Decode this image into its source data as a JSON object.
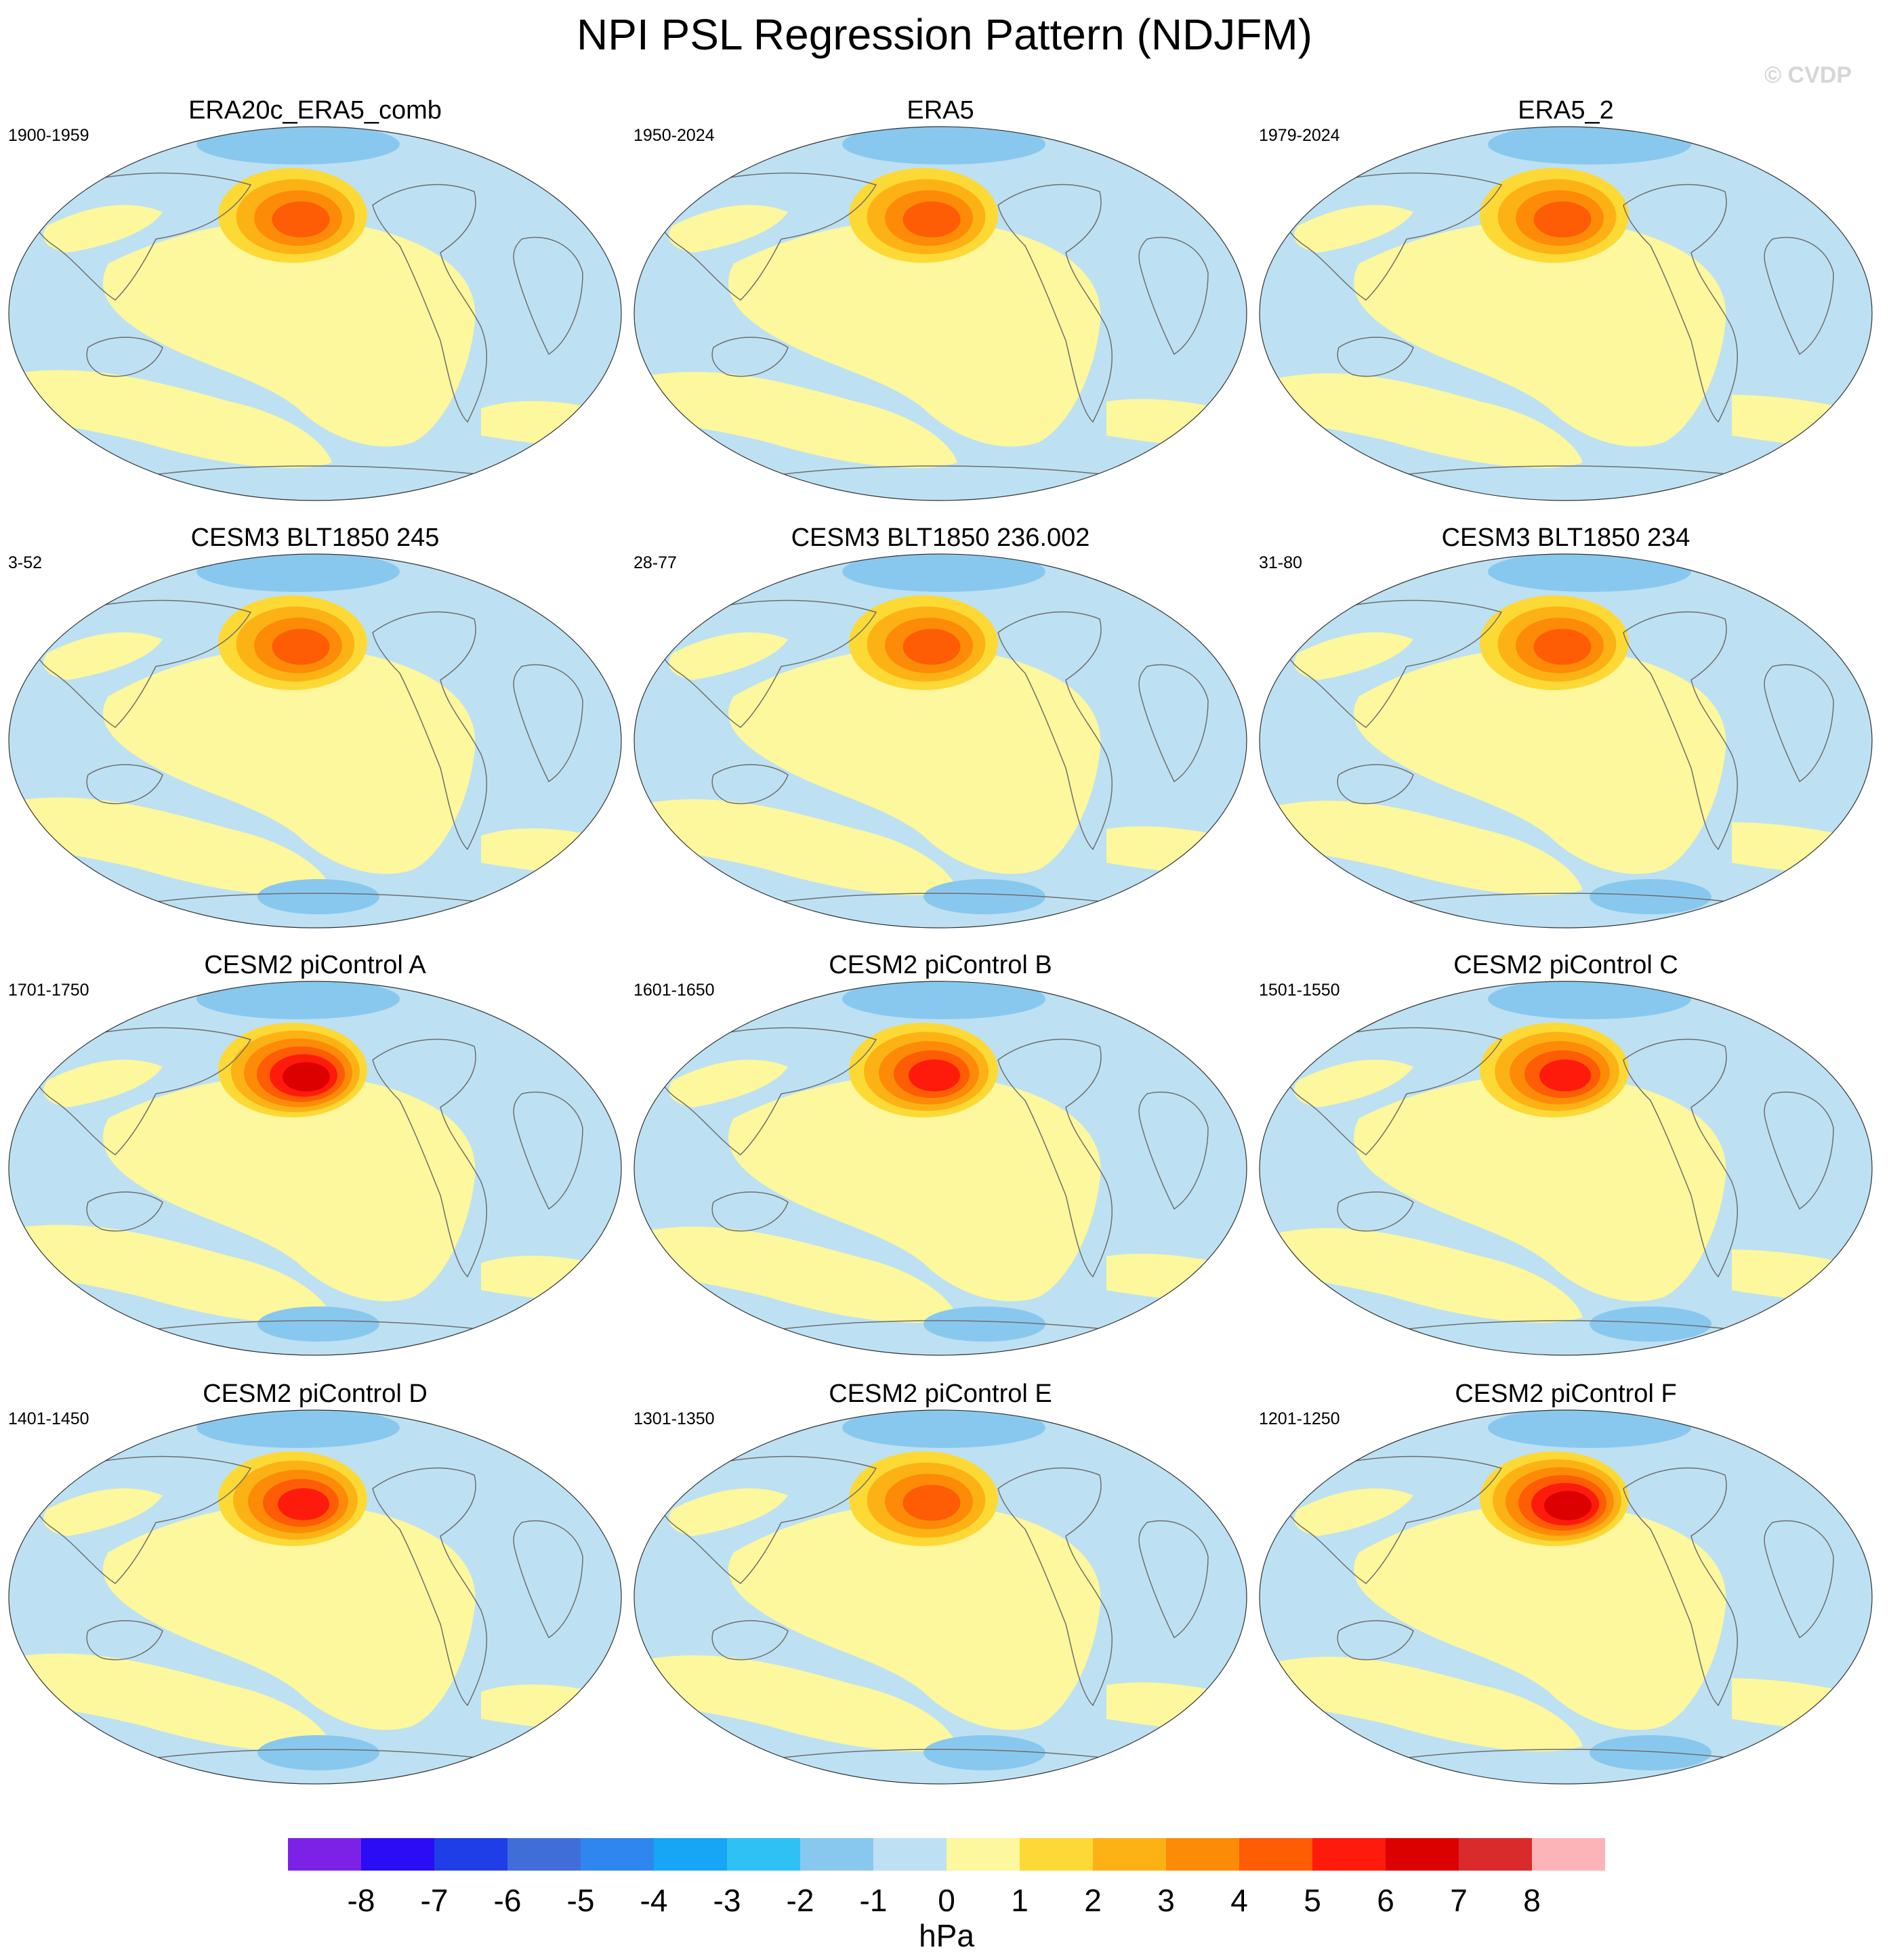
{
  "title": "NPI PSL Regression Pattern (NDJFM)",
  "credit": "© CVDP",
  "chart_data": {
    "type": "contour-map",
    "projection": "robinson",
    "variable": "PSL regression on NPI",
    "season": "NDJFM",
    "units": "hPa",
    "colorbar": {
      "label": "hPa",
      "levels": [
        -8,
        -7,
        -6,
        -5,
        -4,
        -3,
        -2,
        -1,
        0,
        1,
        2,
        3,
        4,
        5,
        6,
        7,
        8
      ],
      "colors": [
        "#7b22e6",
        "#2a0cf5",
        "#1f3ee8",
        "#3f6ed9",
        "#2f86ee",
        "#17a6f5",
        "#2fc1f3",
        "#89c8ee",
        "#bde1f2",
        "#fdf79d",
        "#fdd936",
        "#fcb215",
        "#fd8b07",
        "#fe5c05",
        "#fe1b0c",
        "#dd0000",
        "#d92b2b",
        "#fdb4b8"
      ]
    },
    "panels": [
      {
        "title": "ERA20c_ERA5_comb",
        "period": "1900-1959",
        "npac_max": 4.2
      },
      {
        "title": "ERA5",
        "period": "1950-2024",
        "npac_max": 4.4
      },
      {
        "title": "ERA5_2",
        "period": "1979-2024",
        "npac_max": 4.5
      },
      {
        "title": "CESM3 BLT1850 245",
        "period": "3-52",
        "npac_max": 4.3
      },
      {
        "title": "CESM3 BLT1850 236.002",
        "period": "28-77",
        "npac_max": 4.1
      },
      {
        "title": "CESM3 BLT1850 234",
        "period": "31-80",
        "npac_max": 4.2
      },
      {
        "title": "CESM2 piControl A",
        "period": "1701-1750",
        "npac_max": 6.3
      },
      {
        "title": "CESM2 piControl B",
        "period": "1601-1650",
        "npac_max": 5.2
      },
      {
        "title": "CESM2 piControl C",
        "period": "1501-1550",
        "npac_max": 5.1
      },
      {
        "title": "CESM2 piControl D",
        "period": "1401-1450",
        "npac_max": 5.4
      },
      {
        "title": "CESM2 piControl E",
        "period": "1301-1350",
        "npac_max": 4.6
      },
      {
        "title": "CESM2 piControl F",
        "period": "1201-1250",
        "npac_max": 6.0
      }
    ]
  }
}
